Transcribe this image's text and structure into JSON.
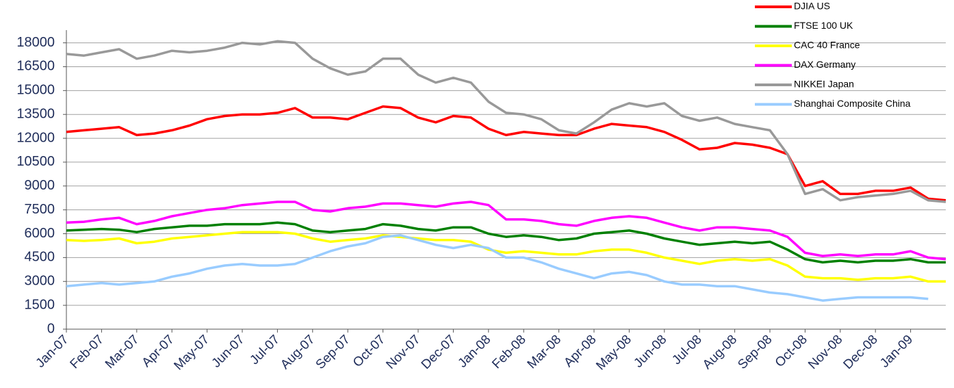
{
  "chart_data": {
    "type": "line",
    "categories": [
      "Jan-07",
      null,
      "Feb-07",
      null,
      "Mar-07",
      null,
      "Apr-07",
      null,
      "May-07",
      null,
      "Jun-07",
      null,
      "Jul-07",
      null,
      "Aug-07",
      null,
      "Sep-07",
      null,
      "Oct-07",
      null,
      "Nov-07",
      null,
      "Dec-07",
      null,
      "Jan-08",
      null,
      "Feb-08",
      null,
      "Mar-08",
      null,
      "Apr-08",
      null,
      "May-08",
      null,
      "Jun-08",
      null,
      "Jul-08",
      null,
      "Aug-08",
      null,
      "Sep-08",
      null,
      "Oct-08",
      null,
      "Nov-08",
      null,
      "Dec-08",
      null,
      "Jan-09",
      null,
      null
    ],
    "series": [
      {
        "name": "DJIA US",
        "color": "#ff0000",
        "values": [
          12400,
          12500,
          12600,
          12700,
          12200,
          12300,
          12500,
          12800,
          13200,
          13400,
          13500,
          13500,
          13600,
          13900,
          13300,
          13300,
          13200,
          13600,
          14000,
          13900,
          13300,
          13000,
          13400,
          13300,
          12600,
          12200,
          12400,
          12300,
          12200,
          12200,
          12600,
          12900,
          12800,
          12700,
          12400,
          11900,
          11300,
          11400,
          11700,
          11600,
          11400,
          11000,
          9000,
          9300,
          8500,
          8500,
          8700,
          8700,
          8900,
          8200,
          8100
        ]
      },
      {
        "name": "FTSE 100 UK",
        "color": "#008000",
        "values": [
          6200,
          6250,
          6300,
          6250,
          6100,
          6300,
          6400,
          6500,
          6500,
          6600,
          6600,
          6600,
          6700,
          6600,
          6200,
          6100,
          6200,
          6300,
          6600,
          6500,
          6300,
          6200,
          6400,
          6400,
          6000,
          5800,
          5900,
          5800,
          5600,
          5700,
          6000,
          6100,
          6200,
          6000,
          5700,
          5500,
          5300,
          5400,
          5500,
          5400,
          5500,
          5000,
          4400,
          4200,
          4300,
          4200,
          4300,
          4300,
          4400,
          4200,
          4200
        ]
      },
      {
        "name": "CAC 40 France",
        "color": "#ffff00",
        "values": [
          5600,
          5550,
          5600,
          5700,
          5400,
          5500,
          5700,
          5800,
          5900,
          6000,
          6100,
          6100,
          6100,
          6000,
          5700,
          5500,
          5600,
          5700,
          5900,
          5800,
          5700,
          5600,
          5600,
          5500,
          5000,
          4800,
          4900,
          4800,
          4700,
          4700,
          4900,
          5000,
          5000,
          4800,
          4500,
          4300,
          4100,
          4300,
          4400,
          4300,
          4400,
          4000,
          3300,
          3200,
          3200,
          3100,
          3200,
          3200,
          3300,
          3000,
          3000
        ]
      },
      {
        "name": "DAX Germany",
        "color": "#ff00ff",
        "values": [
          6700,
          6750,
          6900,
          7000,
          6600,
          6800,
          7100,
          7300,
          7500,
          7600,
          7800,
          7900,
          8000,
          8000,
          7500,
          7400,
          7600,
          7700,
          7900,
          7900,
          7800,
          7700,
          7900,
          8000,
          7800,
          6900,
          6900,
          6800,
          6600,
          6500,
          6800,
          7000,
          7100,
          7000,
          6700,
          6400,
          6200,
          6400,
          6400,
          6300,
          6200,
          5800,
          4800,
          4600,
          4700,
          4600,
          4700,
          4700,
          4900,
          4500,
          4400
        ]
      },
      {
        "name": "NIKKEI Japan",
        "color": "#999999",
        "values": [
          17300,
          17200,
          17400,
          17600,
          17000,
          17200,
          17500,
          17400,
          17500,
          17700,
          18000,
          17900,
          18100,
          18000,
          17000,
          16400,
          16000,
          16200,
          17000,
          17000,
          16000,
          15500,
          15800,
          15500,
          14300,
          13600,
          13500,
          13200,
          12500,
          12300,
          13000,
          13800,
          14200,
          14000,
          14200,
          13400,
          13100,
          13300,
          12900,
          12700,
          12500,
          11000,
          8500,
          8800,
          8100,
          8300,
          8400,
          8500,
          8700,
          8100,
          8000
        ]
      },
      {
        "name": "Shanghai Composite China",
        "color": "#99ccff",
        "values": [
          2700,
          2800,
          2900,
          2800,
          2900,
          3000,
          3300,
          3500,
          3800,
          4000,
          4100,
          4000,
          4000,
          4100,
          4500,
          4900,
          5200,
          5400,
          5800,
          5900,
          5600,
          5300,
          5100,
          5300,
          5100,
          4500,
          4500,
          4200,
          3800,
          3500,
          3200,
          3500,
          3600,
          3400,
          3000,
          2800,
          2800,
          2700,
          2700,
          2500,
          2300,
          2200,
          2000,
          1800,
          1900,
          2000,
          2000,
          2000,
          2000,
          1900,
          null
        ]
      }
    ],
    "ylim": [
      0,
      18800
    ],
    "yticks": [
      0,
      1500,
      3000,
      4500,
      6000,
      7500,
      9000,
      10500,
      12000,
      13500,
      15000,
      16500,
      18000
    ],
    "grid": true,
    "legend": "top-right"
  }
}
